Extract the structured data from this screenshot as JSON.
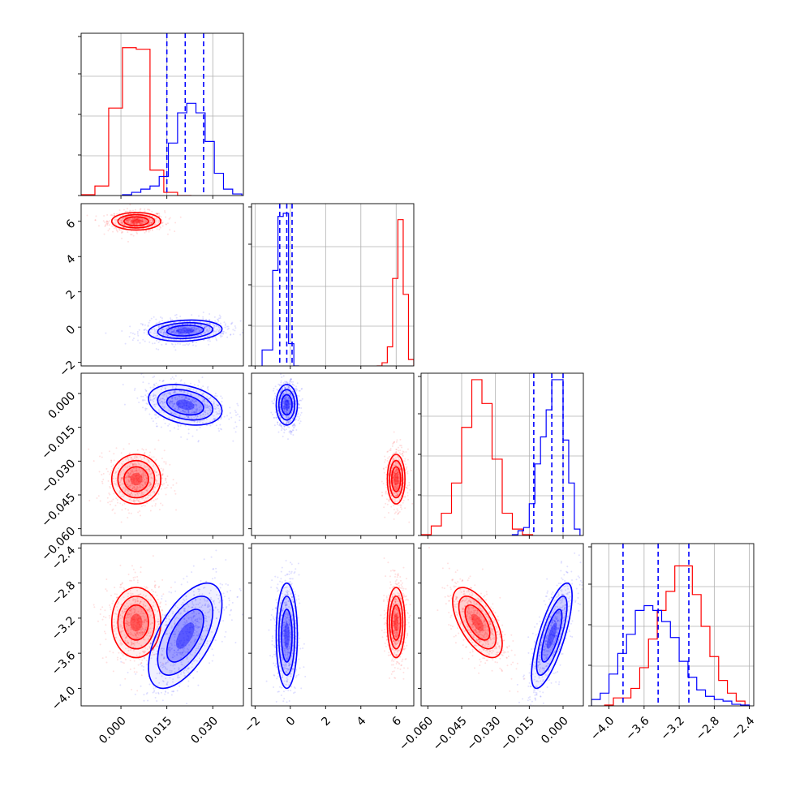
{
  "chart_data": {
    "type": "corner",
    "grid": true,
    "parameters": [
      {
        "ticks": [
          0.0,
          0.015,
          0.03
        ],
        "tick_labels": [
          "0.000",
          "0.015",
          "0.030"
        ],
        "range": [
          -0.013,
          0.04
        ]
      },
      {
        "ticks": [
          -2,
          0,
          2,
          4,
          6
        ],
        "tick_labels": [
          "−2",
          "0",
          "2",
          "4",
          "6"
        ],
        "range": [
          -2.2,
          7.0
        ]
      },
      {
        "ticks": [
          -0.06,
          -0.045,
          -0.03,
          -0.015,
          0.0
        ],
        "tick_labels": [
          "−0.060",
          "−0.045",
          "−0.030",
          "−0.015",
          "0.000"
        ],
        "range": [
          -0.063,
          0.009
        ]
      },
      {
        "ticks": [
          -4.0,
          -3.6,
          -3.2,
          -2.8,
          -2.4
        ],
        "tick_labels": [
          "−4.0",
          "−3.6",
          "−3.2",
          "−2.8",
          "−2.4"
        ],
        "range": [
          -4.2,
          -2.35
        ]
      }
    ],
    "series": [
      {
        "color": "#ff0000",
        "means": [
          0.005,
          6.0,
          -0.038,
          -3.25
        ],
        "sigmas": [
          0.004,
          0.25,
          0.0055,
          0.2
        ],
        "correlations": {
          "2,0": 0.0,
          "3,0": 0.0,
          "2,1": 0.0,
          "3,1": 0.0,
          "3,2": -0.6,
          "1,0": 0.0
        },
        "histograms": [
          {
            "edges": [
              -0.013,
              -0.0085,
              -0.004,
              0.0005,
              0.005,
              0.0095,
              0.014,
              0.0185,
              0.023
            ],
            "counts": [
              0.005,
              0.06,
              0.55,
              0.93,
              0.92,
              0.16,
              0.02,
              0.0
            ]
          },
          {
            "edges": [
              4.9,
              5.2,
              5.5,
              5.8,
              6.1,
              6.4,
              6.7,
              7.0
            ],
            "counts": [
              0.0,
              0.02,
              0.12,
              0.55,
              0.92,
              0.45,
              0.04
            ]
          },
          {
            "edges": [
              -0.063,
              -0.0585,
              -0.054,
              -0.0495,
              -0.045,
              -0.0405,
              -0.036,
              -0.0315,
              -0.027,
              -0.0225,
              -0.018,
              -0.0135
            ],
            "counts": [
              0.005,
              0.06,
              0.14,
              0.33,
              0.68,
              0.98,
              0.83,
              0.48,
              0.14,
              0.04,
              0.005
            ]
          },
          {
            "edges": [
              -4.05,
              -3.95,
              -3.85,
              -3.75,
              -3.65,
              -3.55,
              -3.45,
              -3.35,
              -3.25,
              -3.15,
              -3.05,
              -2.95,
              -2.85,
              -2.75,
              -2.65,
              -2.55,
              -2.45
            ],
            "counts": [
              0.005,
              0.05,
              0.05,
              0.11,
              0.24,
              0.42,
              0.6,
              0.72,
              0.88,
              0.88,
              0.7,
              0.5,
              0.31,
              0.16,
              0.08,
              0.03
            ]
          }
        ]
      },
      {
        "color": "#0000ff",
        "means": [
          0.021,
          -0.2,
          -0.005,
          -3.4
        ],
        "sigmas": [
          0.006,
          0.3,
          0.0045,
          0.3
        ],
        "correlations": {
          "2,0": -0.3,
          "3,0": 0.6,
          "2,1": 0.0,
          "3,1": 0.0,
          "3,2": 0.75,
          "1,0": 0.15
        },
        "quantiles": [
          [
            0.015,
            0.021,
            0.027
          ],
          [
            -0.6,
            -0.2,
            0.1
          ],
          [
            -0.013,
            -0.005,
            0.0
          ],
          [
            -3.84,
            -3.44,
            -3.09
          ]
        ],
        "histograms": [
          {
            "edges": [
              0.0005,
              0.0035,
              0.0065,
              0.0095,
              0.0125,
              0.0155,
              0.0185,
              0.0215,
              0.0245,
              0.0275,
              0.0305,
              0.0335,
              0.0365,
              0.0395
            ],
            "counts": [
              0.005,
              0.02,
              0.04,
              0.06,
              0.12,
              0.33,
              0.52,
              0.58,
              0.52,
              0.34,
              0.14,
              0.04,
              0.01
            ]
          },
          {
            "edges": [
              -1.6,
              -1.0,
              -0.7,
              -0.4,
              -0.1,
              0.2,
              0.5
            ],
            "counts": [
              0.1,
              0.6,
              0.94,
              0.96,
              0.14,
              0.0
            ]
          },
          {
            "edges": [
              -0.0225,
              -0.02,
              -0.0175,
              -0.015,
              -0.0125,
              -0.01,
              -0.0075,
              -0.005,
              -0.0025,
              0.0,
              0.0025,
              0.005,
              0.0075
            ],
            "counts": [
              0.005,
              0.03,
              0.05,
              0.2,
              0.45,
              0.62,
              0.79,
              0.98,
              0.98,
              0.6,
              0.33,
              0.04
            ]
          },
          {
            "edges": [
              -4.2,
              -4.1,
              -4.0,
              -3.9,
              -3.8,
              -3.7,
              -3.6,
              -3.5,
              -3.4,
              -3.3,
              -3.2,
              -3.1,
              -3.0,
              -2.9,
              -2.8,
              -2.7,
              -2.6,
              -2.5,
              -2.4
            ],
            "counts": [
              0.04,
              0.08,
              0.2,
              0.33,
              0.45,
              0.6,
              0.63,
              0.6,
              0.53,
              0.43,
              0.28,
              0.18,
              0.1,
              0.06,
              0.04,
              0.03,
              0.01,
              0.005
            ]
          }
        ]
      }
    ]
  }
}
